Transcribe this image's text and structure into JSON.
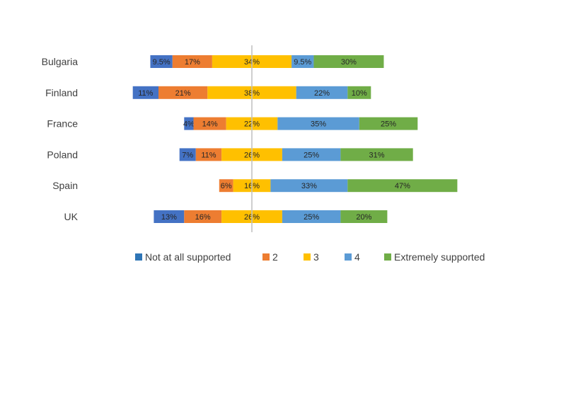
{
  "chart_data": {
    "type": "bar",
    "orientation": "horizontal",
    "stacked": "diverging",
    "categories": [
      "Bulgaria",
      "Finland",
      "France",
      "Poland",
      "Spain",
      "UK"
    ],
    "series": [
      {
        "name": "Not at all supported",
        "color": "#4472C4",
        "legend_color": "#2E75B6",
        "values": [
          9.5,
          11,
          4,
          7,
          0,
          13
        ],
        "labels": [
          "9.5%",
          "11%",
          "4%",
          "7%",
          "",
          "13%"
        ]
      },
      {
        "name": "2",
        "color": "#ED7D31",
        "values": [
          17,
          21,
          14,
          11,
          6,
          16
        ],
        "labels": [
          "17%",
          "21%",
          "14%",
          "11%",
          "6%",
          "16%"
        ]
      },
      {
        "name": "3",
        "color": "#FFC000",
        "values": [
          34,
          38,
          22,
          26,
          16,
          26
        ],
        "labels": [
          "34%",
          "38%",
          "22%",
          "26%",
          "16%",
          "26%"
        ]
      },
      {
        "name": "4",
        "color": "#5B9BD5",
        "values": [
          9.5,
          22,
          35,
          25,
          33,
          25
        ],
        "labels": [
          "9.5%",
          "22%",
          "35%",
          "25%",
          "33%",
          "25%"
        ]
      },
      {
        "name": "Extremely supported",
        "color": "#70AD47",
        "values": [
          30,
          10,
          25,
          31,
          47,
          20
        ],
        "labels": [
          "30%",
          "10%",
          "25%",
          "31%",
          "47%",
          "20%"
        ]
      }
    ],
    "center_line": "middle of 3",
    "legend_position": "bottom",
    "grid": false
  }
}
